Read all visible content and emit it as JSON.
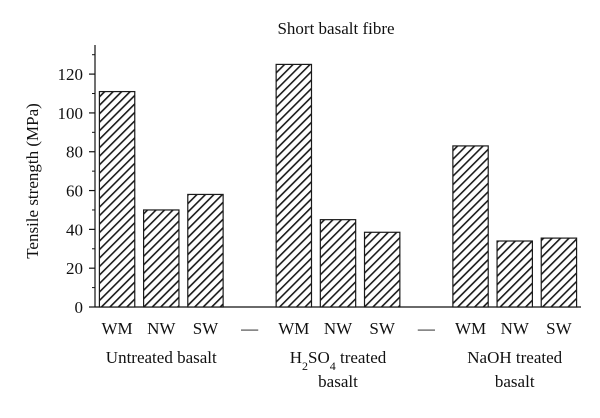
{
  "chart_data": {
    "type": "bar",
    "title": "Short basalt fibre",
    "ylabel": "Tensile strength (MPa)",
    "xlabel": "",
    "ylim": [
      0,
      135
    ],
    "yticks": [
      0,
      20,
      40,
      60,
      80,
      100,
      120
    ],
    "grid": false,
    "bar_fill": "diagonal-hatch",
    "bar_color": "#1a1a1a",
    "categories": [
      "WM",
      "NW",
      "SW",
      "—",
      "WM",
      "NW",
      "SW",
      "—",
      "WM",
      "NW",
      "SW"
    ],
    "values": [
      111,
      50,
      58,
      null,
      125,
      45,
      38.5,
      null,
      83,
      34,
      35.5
    ],
    "groups": [
      {
        "label_lines": [
          "Untreated basalt"
        ],
        "categories": [
          "WM",
          "NW",
          "SW"
        ]
      },
      {
        "label_lines": [
          "H2SO4 treated",
          "basalt"
        ],
        "categories": [
          "WM",
          "NW",
          "SW"
        ]
      },
      {
        "label_lines": [
          "NaOH treated",
          "basalt"
        ],
        "categories": [
          "WM",
          "NW",
          "SW"
        ]
      }
    ]
  }
}
